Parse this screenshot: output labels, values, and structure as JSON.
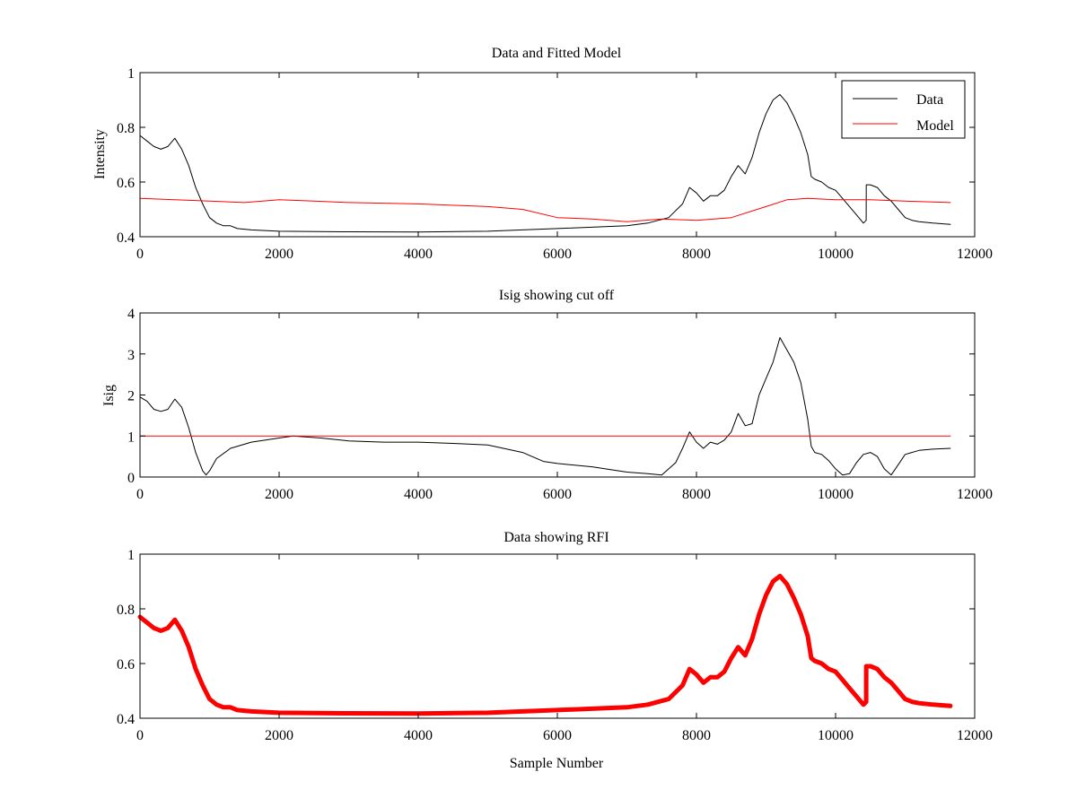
{
  "figure": {
    "background": "#ffffff",
    "data_color": "#000000",
    "model_color": "#ff0000",
    "rfi_color": "#ff0000"
  },
  "chart_data": [
    {
      "type": "line",
      "title": "Data and Fitted Model",
      "xlabel": "",
      "ylabel": "Intensity",
      "xlim": [
        0,
        12000
      ],
      "ylim": [
        0.4,
        1
      ],
      "xticks": [
        0,
        2000,
        4000,
        6000,
        8000,
        10000,
        12000
      ],
      "yticks": [
        0.4,
        0.6,
        0.8,
        1
      ],
      "xtick_labels": [
        "0",
        "2000",
        "4000",
        "6000",
        "8000",
        "10000",
        "12000"
      ],
      "ytick_labels": [
        "0.4",
        "0.6",
        "0.8",
        "1"
      ],
      "grid": false,
      "legend": {
        "position": "top-right",
        "entries": [
          "Data",
          "Model"
        ]
      },
      "series": [
        {
          "name": "Data",
          "color": "#000000",
          "x": [
            0,
            100,
            200,
            300,
            400,
            500,
            600,
            700,
            800,
            900,
            1000,
            1100,
            1200,
            1300,
            1400,
            1600,
            2000,
            3000,
            4000,
            5000,
            6000,
            7000,
            7300,
            7600,
            7800,
            7900,
            8000,
            8100,
            8200,
            8300,
            8400,
            8500,
            8600,
            8700,
            8800,
            8900,
            9000,
            9100,
            9200,
            9300,
            9400,
            9500,
            9600,
            9650,
            9700,
            9800,
            9900,
            10000,
            10100,
            10200,
            10300,
            10400,
            10440,
            10441,
            10500,
            10600,
            10700,
            10800,
            10900,
            11000,
            11100,
            11200,
            11400,
            11650
          ],
          "y": [
            0.77,
            0.75,
            0.73,
            0.72,
            0.73,
            0.76,
            0.72,
            0.66,
            0.58,
            0.52,
            0.47,
            0.45,
            0.44,
            0.44,
            0.43,
            0.425,
            0.42,
            0.418,
            0.417,
            0.42,
            0.43,
            0.44,
            0.45,
            0.47,
            0.52,
            0.58,
            0.56,
            0.53,
            0.55,
            0.55,
            0.57,
            0.62,
            0.66,
            0.63,
            0.69,
            0.78,
            0.85,
            0.9,
            0.92,
            0.89,
            0.84,
            0.78,
            0.7,
            0.62,
            0.61,
            0.6,
            0.58,
            0.57,
            0.54,
            0.51,
            0.48,
            0.45,
            0.46,
            0.59,
            0.59,
            0.58,
            0.55,
            0.53,
            0.5,
            0.47,
            0.46,
            0.455,
            0.45,
            0.445
          ]
        },
        {
          "name": "Model",
          "color": "#ff0000",
          "x": [
            0,
            500,
            1000,
            1500,
            2000,
            2500,
            3000,
            4000,
            5000,
            5500,
            6000,
            6500,
            7000,
            7500,
            8000,
            8500,
            9000,
            9300,
            9600,
            10000,
            10500,
            11000,
            11650
          ],
          "y": [
            0.54,
            0.535,
            0.53,
            0.525,
            0.535,
            0.53,
            0.525,
            0.52,
            0.51,
            0.5,
            0.47,
            0.465,
            0.455,
            0.465,
            0.46,
            0.47,
            0.51,
            0.535,
            0.54,
            0.535,
            0.535,
            0.53,
            0.525
          ]
        }
      ]
    },
    {
      "type": "line",
      "title": "Isig showing cut off",
      "xlabel": "",
      "ylabel": "Isig",
      "xlim": [
        0,
        12000
      ],
      "ylim": [
        0,
        4
      ],
      "xticks": [
        0,
        2000,
        4000,
        6000,
        8000,
        10000,
        12000
      ],
      "yticks": [
        0,
        1,
        2,
        3,
        4
      ],
      "xtick_labels": [
        "0",
        "2000",
        "4000",
        "6000",
        "8000",
        "10000",
        "12000"
      ],
      "ytick_labels": [
        "0",
        "1",
        "2",
        "3",
        "4"
      ],
      "grid": false,
      "series": [
        {
          "color": "#000000",
          "x": [
            0,
            100,
            200,
            300,
            400,
            500,
            600,
            700,
            800,
            900,
            950,
            1000,
            1100,
            1300,
            1600,
            2000,
            2200,
            2600,
            3000,
            3500,
            4000,
            4500,
            5000,
            5500,
            5800,
            6000,
            6500,
            7000,
            7300,
            7500,
            7700,
            7800,
            7900,
            8000,
            8100,
            8200,
            8300,
            8400,
            8500,
            8600,
            8700,
            8800,
            8900,
            9000,
            9100,
            9200,
            9300,
            9400,
            9500,
            9600,
            9650,
            9700,
            9800,
            9900,
            10000,
            10100,
            10200,
            10300,
            10400,
            10500,
            10600,
            10700,
            10800,
            10900,
            11000,
            11200,
            11400,
            11650
          ],
          "y": [
            1.95,
            1.85,
            1.65,
            1.6,
            1.65,
            1.9,
            1.7,
            1.2,
            0.6,
            0.15,
            0.05,
            0.15,
            0.45,
            0.7,
            0.85,
            0.95,
            1.0,
            0.95,
            0.88,
            0.85,
            0.85,
            0.82,
            0.78,
            0.6,
            0.38,
            0.33,
            0.25,
            0.12,
            0.08,
            0.05,
            0.35,
            0.7,
            1.1,
            0.85,
            0.7,
            0.85,
            0.8,
            0.9,
            1.1,
            1.55,
            1.25,
            1.3,
            2.0,
            2.4,
            2.8,
            3.4,
            3.1,
            2.8,
            2.3,
            1.4,
            0.75,
            0.6,
            0.55,
            0.4,
            0.2,
            0.05,
            0.08,
            0.35,
            0.55,
            0.6,
            0.5,
            0.2,
            0.05,
            0.3,
            0.55,
            0.65,
            0.68,
            0.7
          ]
        },
        {
          "color": "#ff0000",
          "x": [
            0,
            11650
          ],
          "y": [
            1,
            1
          ]
        }
      ]
    },
    {
      "type": "line",
      "title": "Data showing RFI",
      "xlabel": "Sample Number",
      "ylabel": "",
      "xlim": [
        0,
        12000
      ],
      "ylim": [
        0.4,
        1
      ],
      "xticks": [
        0,
        2000,
        4000,
        6000,
        8000,
        10000,
        12000
      ],
      "yticks": [
        0.4,
        0.6,
        0.8,
        1
      ],
      "xtick_labels": [
        "0",
        "2000",
        "4000",
        "6000",
        "8000",
        "10000",
        "12000"
      ],
      "ytick_labels": [
        "0.4",
        "0.6",
        "0.8",
        "1"
      ],
      "grid": false,
      "series": [
        {
          "color": "#ff0000",
          "thick": true,
          "x": [
            0,
            100,
            200,
            300,
            400,
            500,
            600,
            700,
            800,
            900,
            1000,
            1100,
            1200,
            1300,
            1400,
            1600,
            2000,
            3000,
            4000,
            5000,
            6000,
            7000,
            7300,
            7600,
            7800,
            7900,
            8000,
            8100,
            8200,
            8300,
            8400,
            8500,
            8600,
            8700,
            8800,
            8900,
            9000,
            9100,
            9200,
            9300,
            9400,
            9500,
            9600,
            9650,
            9700,
            9800,
            9900,
            10000,
            10100,
            10200,
            10300,
            10400,
            10440,
            10441,
            10500,
            10600,
            10700,
            10800,
            10900,
            11000,
            11100,
            11200,
            11400,
            11650
          ],
          "y": [
            0.77,
            0.75,
            0.73,
            0.72,
            0.73,
            0.76,
            0.72,
            0.66,
            0.58,
            0.52,
            0.47,
            0.45,
            0.44,
            0.44,
            0.43,
            0.425,
            0.42,
            0.418,
            0.417,
            0.42,
            0.43,
            0.44,
            0.45,
            0.47,
            0.52,
            0.58,
            0.56,
            0.53,
            0.55,
            0.55,
            0.57,
            0.62,
            0.66,
            0.63,
            0.69,
            0.78,
            0.85,
            0.9,
            0.92,
            0.89,
            0.84,
            0.78,
            0.7,
            0.62,
            0.61,
            0.6,
            0.58,
            0.57,
            0.54,
            0.51,
            0.48,
            0.45,
            0.46,
            0.59,
            0.59,
            0.58,
            0.55,
            0.53,
            0.5,
            0.47,
            0.46,
            0.455,
            0.45,
            0.445
          ]
        }
      ]
    }
  ]
}
